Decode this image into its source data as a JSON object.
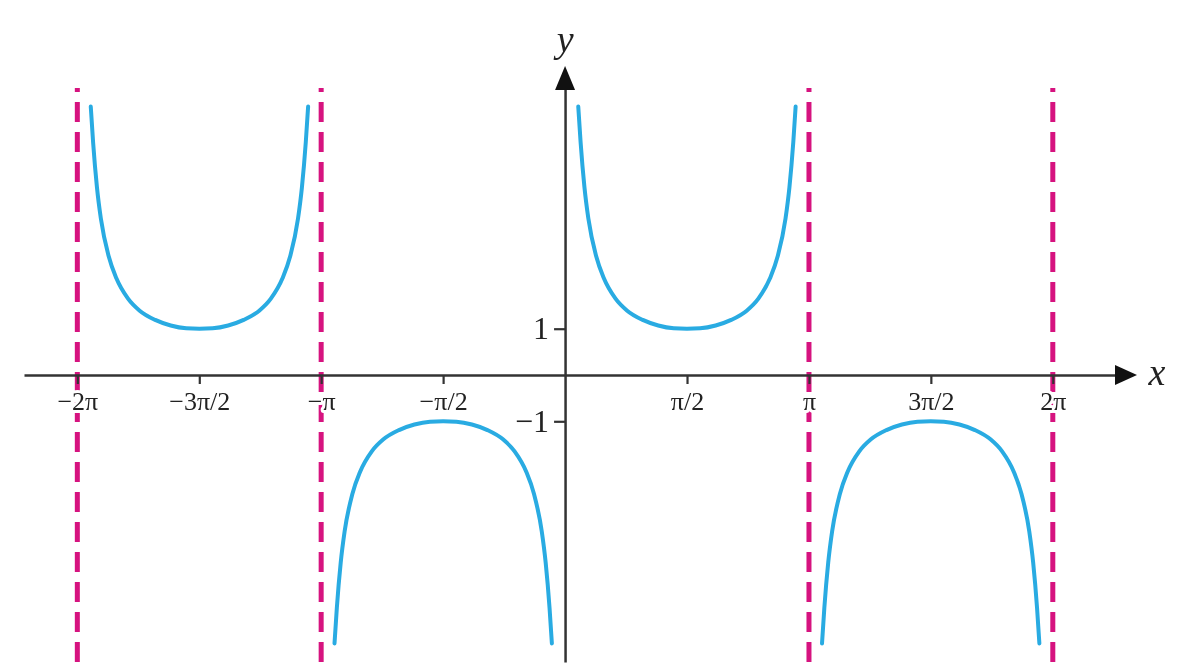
{
  "chart_data": {
    "type": "line",
    "xlabel": "x",
    "ylabel": "y",
    "xlim": [
      -6.97,
      7.11
    ],
    "ylim": [
      -6.2,
      6.2
    ],
    "xticks": [
      {
        "value": -6.283,
        "label": "−2π"
      },
      {
        "value": -4.712,
        "label": "−3π/2"
      },
      {
        "value": -3.142,
        "label": "−π"
      },
      {
        "value": -1.571,
        "label": "−π/2"
      },
      {
        "value": 1.571,
        "label": "π/2"
      },
      {
        "value": 3.142,
        "label": "π"
      },
      {
        "value": 4.712,
        "label": "3π/2"
      },
      {
        "value": 6.283,
        "label": "2π"
      }
    ],
    "yticks": [
      1,
      -1
    ],
    "x": [
      -6.11,
      -6.08,
      -6.03,
      -5.98,
      -5.88,
      -5.78,
      -5.63,
      -5.48,
      -5.28,
      -5.08,
      -4.88,
      -4.71,
      -4.54,
      -4.34,
      -4.14,
      -3.94,
      -3.79,
      -3.64,
      -3.54,
      -3.44,
      -3.39,
      -3.34,
      -3.31,
      -3.14,
      -2.97,
      -2.94,
      -2.89,
      -2.84,
      -2.74,
      -2.64,
      -2.49,
      -2.34,
      -2.14,
      -1.94,
      -1.74,
      -1.57,
      -1.4,
      -1.2,
      -1.0,
      -0.8,
      -0.65,
      -0.5,
      -0.4,
      -0.3,
      -0.25,
      -0.2,
      -0.17,
      0,
      0.17,
      0.2,
      0.25,
      0.3,
      0.4,
      0.5,
      0.65,
      0.8,
      1.0,
      1.2,
      1.4,
      1.57,
      1.74,
      1.94,
      2.14,
      2.34,
      2.49,
      2.64,
      2.74,
      2.84,
      2.89,
      2.94,
      2.97,
      3.14,
      3.31,
      3.34,
      3.39,
      3.44,
      3.54,
      3.64,
      3.79,
      3.94,
      4.14,
      4.34,
      4.54,
      4.71,
      4.88,
      5.08,
      5.28,
      5.48,
      5.63,
      5.78,
      5.88,
      5.98,
      6.03,
      6.08,
      6.11
    ],
    "series": [
      {
        "color": "#29abe2",
        "values": [
          5.8,
          5.03,
          4.05,
          3.38,
          2.57,
          2.09,
          1.65,
          1.39,
          1.19,
          1.07,
          1.01,
          1,
          1.01,
          1.07,
          1.19,
          1.39,
          1.65,
          2.09,
          2.57,
          3.38,
          4.05,
          5.03,
          5.8,
          null,
          -5.8,
          -5.03,
          -4.05,
          -3.38,
          -2.57,
          -2.09,
          -1.65,
          -1.39,
          -1.19,
          -1.07,
          -1.01,
          -1,
          -1.01,
          -1.07,
          -1.19,
          -1.39,
          -1.65,
          -2.09,
          -2.57,
          -3.38,
          -4.05,
          -5.03,
          -5.8,
          null,
          5.8,
          5.03,
          4.05,
          3.38,
          2.57,
          2.09,
          1.65,
          1.39,
          1.19,
          1.07,
          1.01,
          1,
          1.01,
          1.07,
          1.19,
          1.39,
          1.65,
          2.09,
          2.57,
          3.38,
          4.05,
          5.03,
          5.8,
          null,
          -5.8,
          -5.03,
          -4.05,
          -3.38,
          -2.57,
          -2.09,
          -1.65,
          -1.39,
          -1.19,
          -1.07,
          -1.01,
          -1,
          -1.01,
          -1.07,
          -1.19,
          -1.39,
          -1.65,
          -2.09,
          -2.57,
          -3.38,
          -4.05,
          -5.03,
          -5.8
        ]
      }
    ],
    "ref_lines": [
      {
        "axis": "x",
        "value": -6.283,
        "color": "#d6137f",
        "line_style": "dashed"
      },
      {
        "axis": "x",
        "value": -3.142,
        "color": "#d6137f",
        "line_style": "dashed"
      },
      {
        "axis": "x",
        "value": 3.142,
        "color": "#d6137f",
        "line_style": "dashed"
      },
      {
        "axis": "x",
        "value": 6.283,
        "color": "#d6137f",
        "line_style": "dashed"
      }
    ]
  }
}
